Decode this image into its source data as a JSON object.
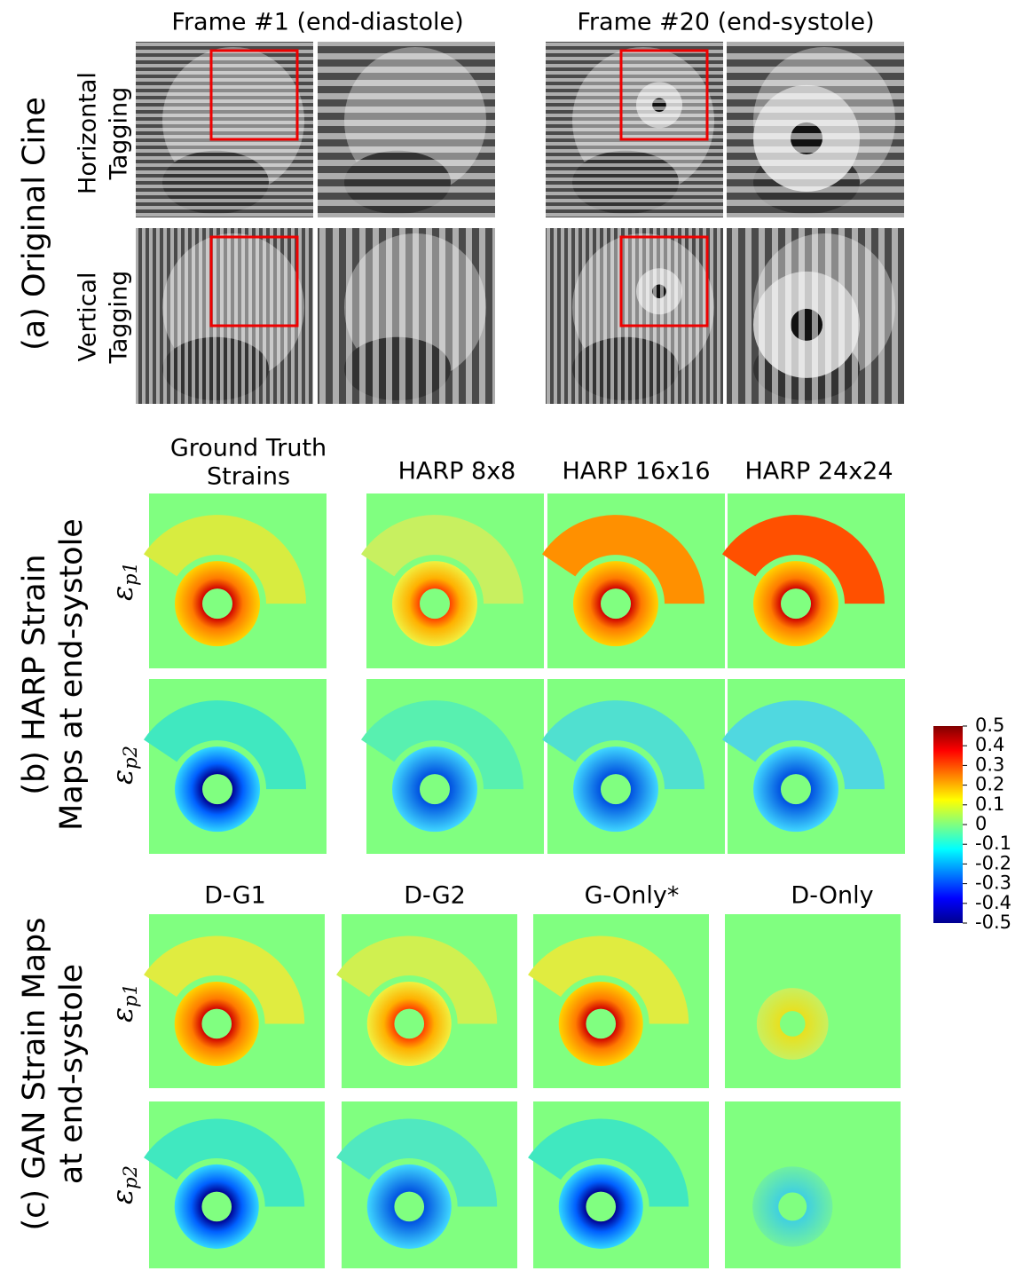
{
  "section_a": {
    "title": "(a) Original Cine",
    "columns": [
      "Frame #1 (end-diastole)",
      "Frame #20 (end-systole)"
    ],
    "rows": [
      [
        "Horizontal",
        "Tagging"
      ],
      [
        "Vertical",
        "Tagging"
      ]
    ]
  },
  "section_b": {
    "title": [
      "(b) HARP Strain",
      "Maps at end-systole"
    ],
    "columns": [
      [
        "Ground Truth",
        "Strains"
      ],
      [
        "HARP 8x8"
      ],
      [
        "HARP 16x16"
      ],
      [
        "HARP 24x24"
      ]
    ],
    "rows": [
      {
        "symbol": "ε",
        "sub": "p1"
      },
      {
        "symbol": "ε",
        "sub": "p2"
      }
    ]
  },
  "section_c": {
    "title": [
      "(c) GAN Strain Maps",
      "at end-systole"
    ],
    "columns": [
      "D-G1",
      "D-G2",
      "G-Only*",
      "D-Only"
    ],
    "rows": [
      {
        "symbol": "ε",
        "sub": "p1"
      },
      {
        "symbol": "ε",
        "sub": "p2"
      }
    ]
  },
  "colorbar": {
    "lim": [
      -0.5,
      0.5
    ],
    "ticks": [
      0.5,
      0.4,
      0.3,
      0.2,
      0.1,
      0,
      -0.1,
      -0.2,
      -0.3,
      -0.4,
      -0.5
    ]
  }
}
